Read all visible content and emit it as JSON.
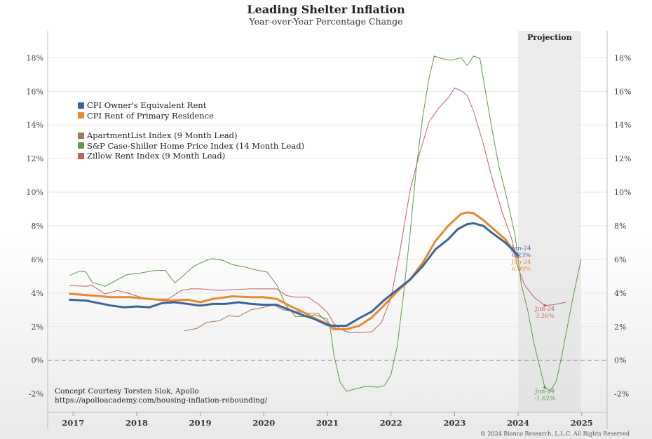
{
  "chart_data": {
    "type": "line",
    "title": "Leading Shelter Inflation",
    "subtitle": "Year-over-Year Percentage Change",
    "projection_label": "Projection",
    "projection_range": [
      2024.0,
      2024.99
    ],
    "xlim": [
      2016.6,
      2025.4
    ],
    "ylim": [
      -0.031,
      0.196
    ],
    "x_ticks": [
      2017,
      2018,
      2019,
      2020,
      2021,
      2022,
      2023,
      2024,
      2025
    ],
    "x_tick_labels": [
      "2017",
      "2018",
      "2019",
      "2020",
      "2021",
      "2022",
      "2023",
      "2024",
      "2025"
    ],
    "y_ticks": [
      -0.02,
      0,
      0.02,
      0.04,
      0.06,
      0.08,
      0.1,
      0.12,
      0.14,
      0.16,
      0.18
    ],
    "y_tick_labels": [
      "-2%",
      "0%",
      "2%",
      "4%",
      "6%",
      "8%",
      "10%",
      "12%",
      "14%",
      "16%",
      "18%"
    ],
    "grid": true,
    "zero_line": "dashed",
    "legend_position": "top-left",
    "series": [
      {
        "name": "CPI Owner's Equivalent Rent",
        "color": "#3d6498",
        "width": 3,
        "points": [
          [
            2016.95,
            0.036
          ],
          [
            2017.2,
            0.0355
          ],
          [
            2017.4,
            0.034
          ],
          [
            2017.6,
            0.0325
          ],
          [
            2017.8,
            0.0315
          ],
          [
            2018.0,
            0.032
          ],
          [
            2018.2,
            0.0315
          ],
          [
            2018.4,
            0.034
          ],
          [
            2018.6,
            0.0345
          ],
          [
            2018.8,
            0.0335
          ],
          [
            2019.0,
            0.0325
          ],
          [
            2019.2,
            0.0335
          ],
          [
            2019.4,
            0.0335
          ],
          [
            2019.6,
            0.0345
          ],
          [
            2019.8,
            0.0335
          ],
          [
            2020.0,
            0.033
          ],
          [
            2020.2,
            0.033
          ],
          [
            2020.4,
            0.03
          ],
          [
            2020.6,
            0.027
          ],
          [
            2020.8,
            0.0245
          ],
          [
            2021.0,
            0.021
          ],
          [
            2021.1,
            0.0205
          ],
          [
            2021.3,
            0.0205
          ],
          [
            2021.5,
            0.025
          ],
          [
            2021.7,
            0.029
          ],
          [
            2021.9,
            0.036
          ],
          [
            2022.1,
            0.042
          ],
          [
            2022.3,
            0.048
          ],
          [
            2022.5,
            0.056
          ],
          [
            2022.7,
            0.066
          ],
          [
            2022.9,
            0.072
          ],
          [
            2023.05,
            0.078
          ],
          [
            2023.2,
            0.081
          ],
          [
            2023.3,
            0.0815
          ],
          [
            2023.45,
            0.08
          ],
          [
            2023.6,
            0.0755
          ],
          [
            2023.8,
            0.07
          ],
          [
            2023.92,
            0.0655
          ],
          [
            2024.0,
            0.0623
          ]
        ]
      },
      {
        "name": "CPI Rent of Primary Residence",
        "color": "#e68a2e",
        "width": 3,
        "points": [
          [
            2016.95,
            0.0395
          ],
          [
            2017.3,
            0.0385
          ],
          [
            2017.6,
            0.0375
          ],
          [
            2017.9,
            0.0375
          ],
          [
            2018.2,
            0.0365
          ],
          [
            2018.5,
            0.0355
          ],
          [
            2018.8,
            0.036
          ],
          [
            2019.0,
            0.0345
          ],
          [
            2019.2,
            0.0365
          ],
          [
            2019.5,
            0.038
          ],
          [
            2019.8,
            0.0375
          ],
          [
            2020.0,
            0.0375
          ],
          [
            2020.2,
            0.0365
          ],
          [
            2020.4,
            0.0325
          ],
          [
            2020.6,
            0.029
          ],
          [
            2020.8,
            0.025
          ],
          [
            2021.0,
            0.0215
          ],
          [
            2021.1,
            0.0185
          ],
          [
            2021.3,
            0.0185
          ],
          [
            2021.5,
            0.0205
          ],
          [
            2021.7,
            0.0255
          ],
          [
            2021.9,
            0.033
          ],
          [
            2022.1,
            0.041
          ],
          [
            2022.3,
            0.048
          ],
          [
            2022.5,
            0.058
          ],
          [
            2022.7,
            0.071
          ],
          [
            2022.9,
            0.08
          ],
          [
            2023.1,
            0.087
          ],
          [
            2023.2,
            0.088
          ],
          [
            2023.3,
            0.0875
          ],
          [
            2023.45,
            0.0835
          ],
          [
            2023.6,
            0.0785
          ],
          [
            2023.8,
            0.072
          ],
          [
            2024.0,
            0.0609
          ]
        ]
      },
      {
        "name": "ApartmentList Index (9 Month Lead)",
        "color": "#a0785a",
        "width": 1,
        "points": [
          [
            2018.75,
            0.0175
          ],
          [
            2018.95,
            0.019
          ],
          [
            2019.1,
            0.0225
          ],
          [
            2019.3,
            0.0235
          ],
          [
            2019.45,
            0.0265
          ],
          [
            2019.6,
            0.026
          ],
          [
            2019.8,
            0.03
          ],
          [
            2020.0,
            0.0315
          ],
          [
            2020.15,
            0.033
          ],
          [
            2020.3,
            0.03
          ],
          [
            2020.5,
            0.029
          ],
          [
            2020.7,
            0.028
          ],
          [
            2020.85,
            0.028
          ],
          [
            2021.0,
            0.0225
          ],
          [
            2021.15,
            0.0185
          ]
        ]
      },
      {
        "name": "S&P Case-Shiller Home Price Index (14 Month Lead)",
        "color": "#5a9a4a",
        "width": 1,
        "points": [
          [
            2016.95,
            0.0505
          ],
          [
            2017.1,
            0.053
          ],
          [
            2017.2,
            0.0525
          ],
          [
            2017.3,
            0.0465
          ],
          [
            2017.5,
            0.044
          ],
          [
            2017.7,
            0.048
          ],
          [
            2017.85,
            0.051
          ],
          [
            2018.0,
            0.0515
          ],
          [
            2018.15,
            0.0525
          ],
          [
            2018.3,
            0.0535
          ],
          [
            2018.45,
            0.0535
          ],
          [
            2018.6,
            0.046
          ],
          [
            2018.75,
            0.051
          ],
          [
            2018.9,
            0.056
          ],
          [
            2019.1,
            0.0595
          ],
          [
            2019.2,
            0.0605
          ],
          [
            2019.35,
            0.0595
          ],
          [
            2019.5,
            0.057
          ],
          [
            2019.7,
            0.0555
          ],
          [
            2019.9,
            0.0535
          ],
          [
            2020.05,
            0.0525
          ],
          [
            2020.2,
            0.045
          ],
          [
            2020.35,
            0.0325
          ],
          [
            2020.5,
            0.026
          ],
          [
            2020.65,
            0.026
          ],
          [
            2020.8,
            0.027
          ],
          [
            2021.0,
            0.0245
          ],
          [
            2021.05,
            0.018
          ],
          [
            2021.1,
            0.0035
          ],
          [
            2021.2,
            -0.013
          ],
          [
            2021.3,
            -0.0185
          ],
          [
            2021.45,
            -0.017
          ],
          [
            2021.6,
            -0.0155
          ],
          [
            2021.8,
            -0.016
          ],
          [
            2021.9,
            -0.015
          ],
          [
            2022.0,
            -0.0085
          ],
          [
            2022.1,
            0.0085
          ],
          [
            2022.2,
            0.04
          ],
          [
            2022.3,
            0.0755
          ],
          [
            2022.4,
            0.115
          ],
          [
            2022.5,
            0.145
          ],
          [
            2022.6,
            0.168
          ],
          [
            2022.68,
            0.181
          ],
          [
            2022.8,
            0.1795
          ],
          [
            2022.95,
            0.1785
          ],
          [
            2023.1,
            0.18
          ],
          [
            2023.2,
            0.1755
          ],
          [
            2023.3,
            0.181
          ],
          [
            2023.4,
            0.1795
          ],
          [
            2023.5,
            0.157
          ],
          [
            2023.6,
            0.135
          ],
          [
            2023.7,
            0.115
          ],
          [
            2023.8,
            0.1
          ],
          [
            2023.95,
            0.075
          ],
          [
            2024.05,
            0.045
          ],
          [
            2024.15,
            0.03
          ],
          [
            2024.25,
            0.01
          ],
          [
            2024.35,
            -0.0055
          ],
          [
            2024.42,
            -0.0162
          ],
          [
            2024.5,
            -0.0185
          ],
          [
            2024.6,
            -0.0125
          ],
          [
            2024.7,
            0.005
          ],
          [
            2024.85,
            0.035
          ],
          [
            2024.99,
            0.06
          ]
        ]
      },
      {
        "name": "Zillow Rent Index (9 Month Lead)",
        "color": "#c46060",
        "width": 1,
        "points": [
          [
            2016.95,
            0.0445
          ],
          [
            2017.2,
            0.044
          ],
          [
            2017.3,
            0.0445
          ],
          [
            2017.5,
            0.0395
          ],
          [
            2017.7,
            0.0415
          ],
          [
            2017.9,
            0.0395
          ],
          [
            2018.1,
            0.037
          ],
          [
            2018.3,
            0.0365
          ],
          [
            2018.5,
            0.0365
          ],
          [
            2018.7,
            0.0415
          ],
          [
            2018.85,
            0.0425
          ],
          [
            2019.0,
            0.0425
          ],
          [
            2019.3,
            0.0415
          ],
          [
            2019.5,
            0.042
          ],
          [
            2019.8,
            0.0425
          ],
          [
            2020.0,
            0.0425
          ],
          [
            2020.2,
            0.0425
          ],
          [
            2020.35,
            0.0385
          ],
          [
            2020.5,
            0.0375
          ],
          [
            2020.7,
            0.0375
          ],
          [
            2020.85,
            0.0335
          ],
          [
            2021.0,
            0.0285
          ],
          [
            2021.1,
            0.022
          ],
          [
            2021.2,
            0.0185
          ],
          [
            2021.35,
            0.0165
          ],
          [
            2021.55,
            0.0165
          ],
          [
            2021.7,
            0.017
          ],
          [
            2021.85,
            0.0225
          ],
          [
            2022.0,
            0.037
          ],
          [
            2022.15,
            0.067
          ],
          [
            2022.3,
            0.101
          ],
          [
            2022.45,
            0.123
          ],
          [
            2022.6,
            0.142
          ],
          [
            2022.75,
            0.15
          ],
          [
            2022.9,
            0.156
          ],
          [
            2023.0,
            0.162
          ],
          [
            2023.1,
            0.1605
          ],
          [
            2023.2,
            0.1575
          ],
          [
            2023.3,
            0.148
          ],
          [
            2023.45,
            0.129
          ],
          [
            2023.6,
            0.107
          ],
          [
            2023.75,
            0.088
          ],
          [
            2023.9,
            0.072
          ],
          [
            2024.0,
            0.055
          ],
          [
            2024.1,
            0.045
          ],
          [
            2024.25,
            0.0375
          ],
          [
            2024.42,
            0.0326
          ],
          [
            2024.55,
            0.033
          ],
          [
            2024.75,
            0.0345
          ]
        ]
      }
    ],
    "annotations": [
      {
        "lines": [
          "Jan-24",
          "6.23%"
        ],
        "x": 2024.05,
        "y": 0.0655,
        "color": "#3d6498"
      },
      {
        "lines": [
          "Jan-24",
          "6.09%"
        ],
        "x": 2024.05,
        "y": 0.0575,
        "color": "#e68a2e"
      },
      {
        "lines": [
          "Jun-24",
          "3.26%"
        ],
        "x": 2024.42,
        "y": 0.0295,
        "color": "#c46060"
      },
      {
        "lines": [
          "Jun-24",
          "-1.62%"
        ],
        "x": 2024.42,
        "y": -0.0195,
        "color": "#5a9a4a"
      }
    ],
    "credit": [
      "Concept Courtesy Torsten Slok, Apollo",
      "https://apolloacademy.com/housing-inflation-rebounding/"
    ],
    "copyright": "© 2024 Bianco Research, L.L.C. All Rights Reserved"
  }
}
